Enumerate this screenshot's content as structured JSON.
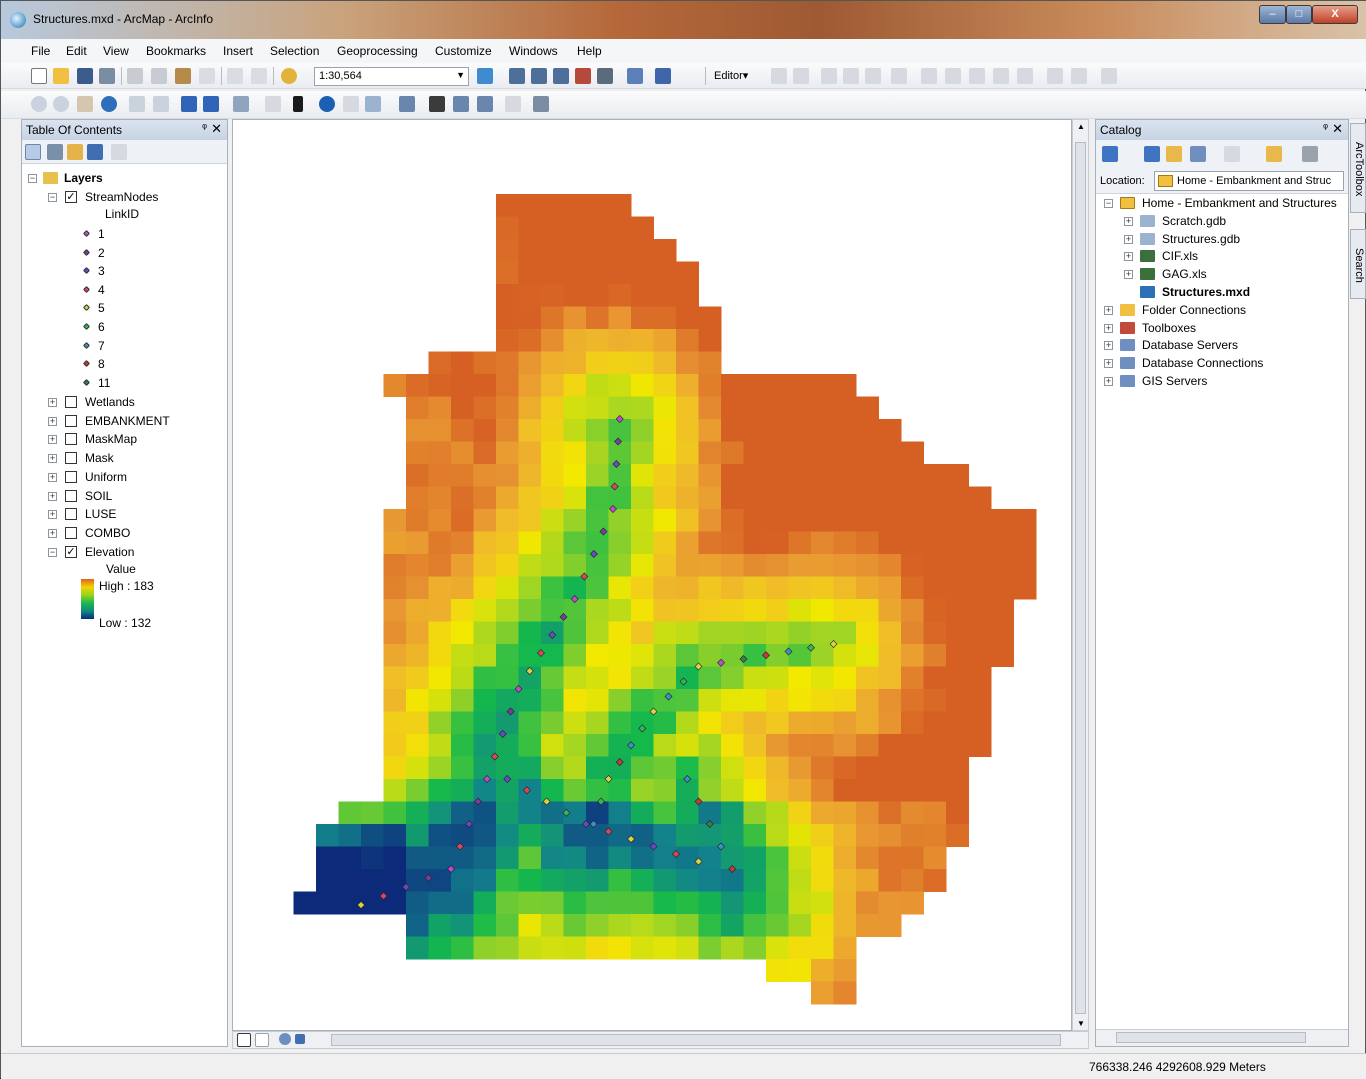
{
  "window": {
    "title": "Structures.mxd - ArcMap - ArcInfo",
    "min": "–",
    "max": "□",
    "close": "X"
  },
  "menu": [
    "File",
    "Edit",
    "View",
    "Bookmarks",
    "Insert",
    "Selection",
    "Geoprocessing",
    "Customize",
    "Windows",
    "Help"
  ],
  "toolbar": {
    "scale": "1:30,564",
    "editor_label": "Editor▾"
  },
  "toc": {
    "title": "Table Of Contents",
    "root": "Layers",
    "streamnodes": {
      "name": "StreamNodes",
      "field": "LinkID",
      "classes": [
        {
          "label": "1",
          "color": "#c04bd0"
        },
        {
          "label": "2",
          "color": "#7a3d9e"
        },
        {
          "label": "3",
          "color": "#6f46c8"
        },
        {
          "label": "4",
          "color": "#d6485e"
        },
        {
          "label": "5",
          "color": "#d9d247"
        },
        {
          "label": "6",
          "color": "#38b35a"
        },
        {
          "label": "7",
          "color": "#3e8fc8"
        },
        {
          "label": "8",
          "color": "#c43a3a"
        },
        {
          "label": "11",
          "color": "#3a7a4e"
        }
      ]
    },
    "layers": [
      "Wetlands",
      "EMBANKMENT",
      "MaskMap",
      "Mask",
      "Uniform",
      "SOIL",
      "LUSE",
      "COMBO"
    ],
    "elevation": {
      "name": "Elevation",
      "field": "Value",
      "high": "High : 183",
      "low": "Low : 132"
    }
  },
  "catalog": {
    "title": "Catalog",
    "location_label": "Location:",
    "location_value": "Home - Embankment and Struc",
    "home": "Home - Embankment and Structures",
    "home_items": [
      {
        "label": "Scratch.gdb",
        "kind": "gdb"
      },
      {
        "label": "Structures.gdb",
        "kind": "gdb"
      },
      {
        "label": "CIF.xls",
        "kind": "xls"
      },
      {
        "label": "GAG.xls",
        "kind": "xls"
      },
      {
        "label": "Structures.mxd",
        "kind": "mxd"
      }
    ],
    "roots": [
      "Folder Connections",
      "Toolboxes",
      "Database Servers",
      "Database Connections",
      "GIS Servers"
    ]
  },
  "side_tabs": [
    "ArcToolbox",
    "Search"
  ],
  "status": {
    "coords": "766338.246  4292608.929 Meters"
  }
}
